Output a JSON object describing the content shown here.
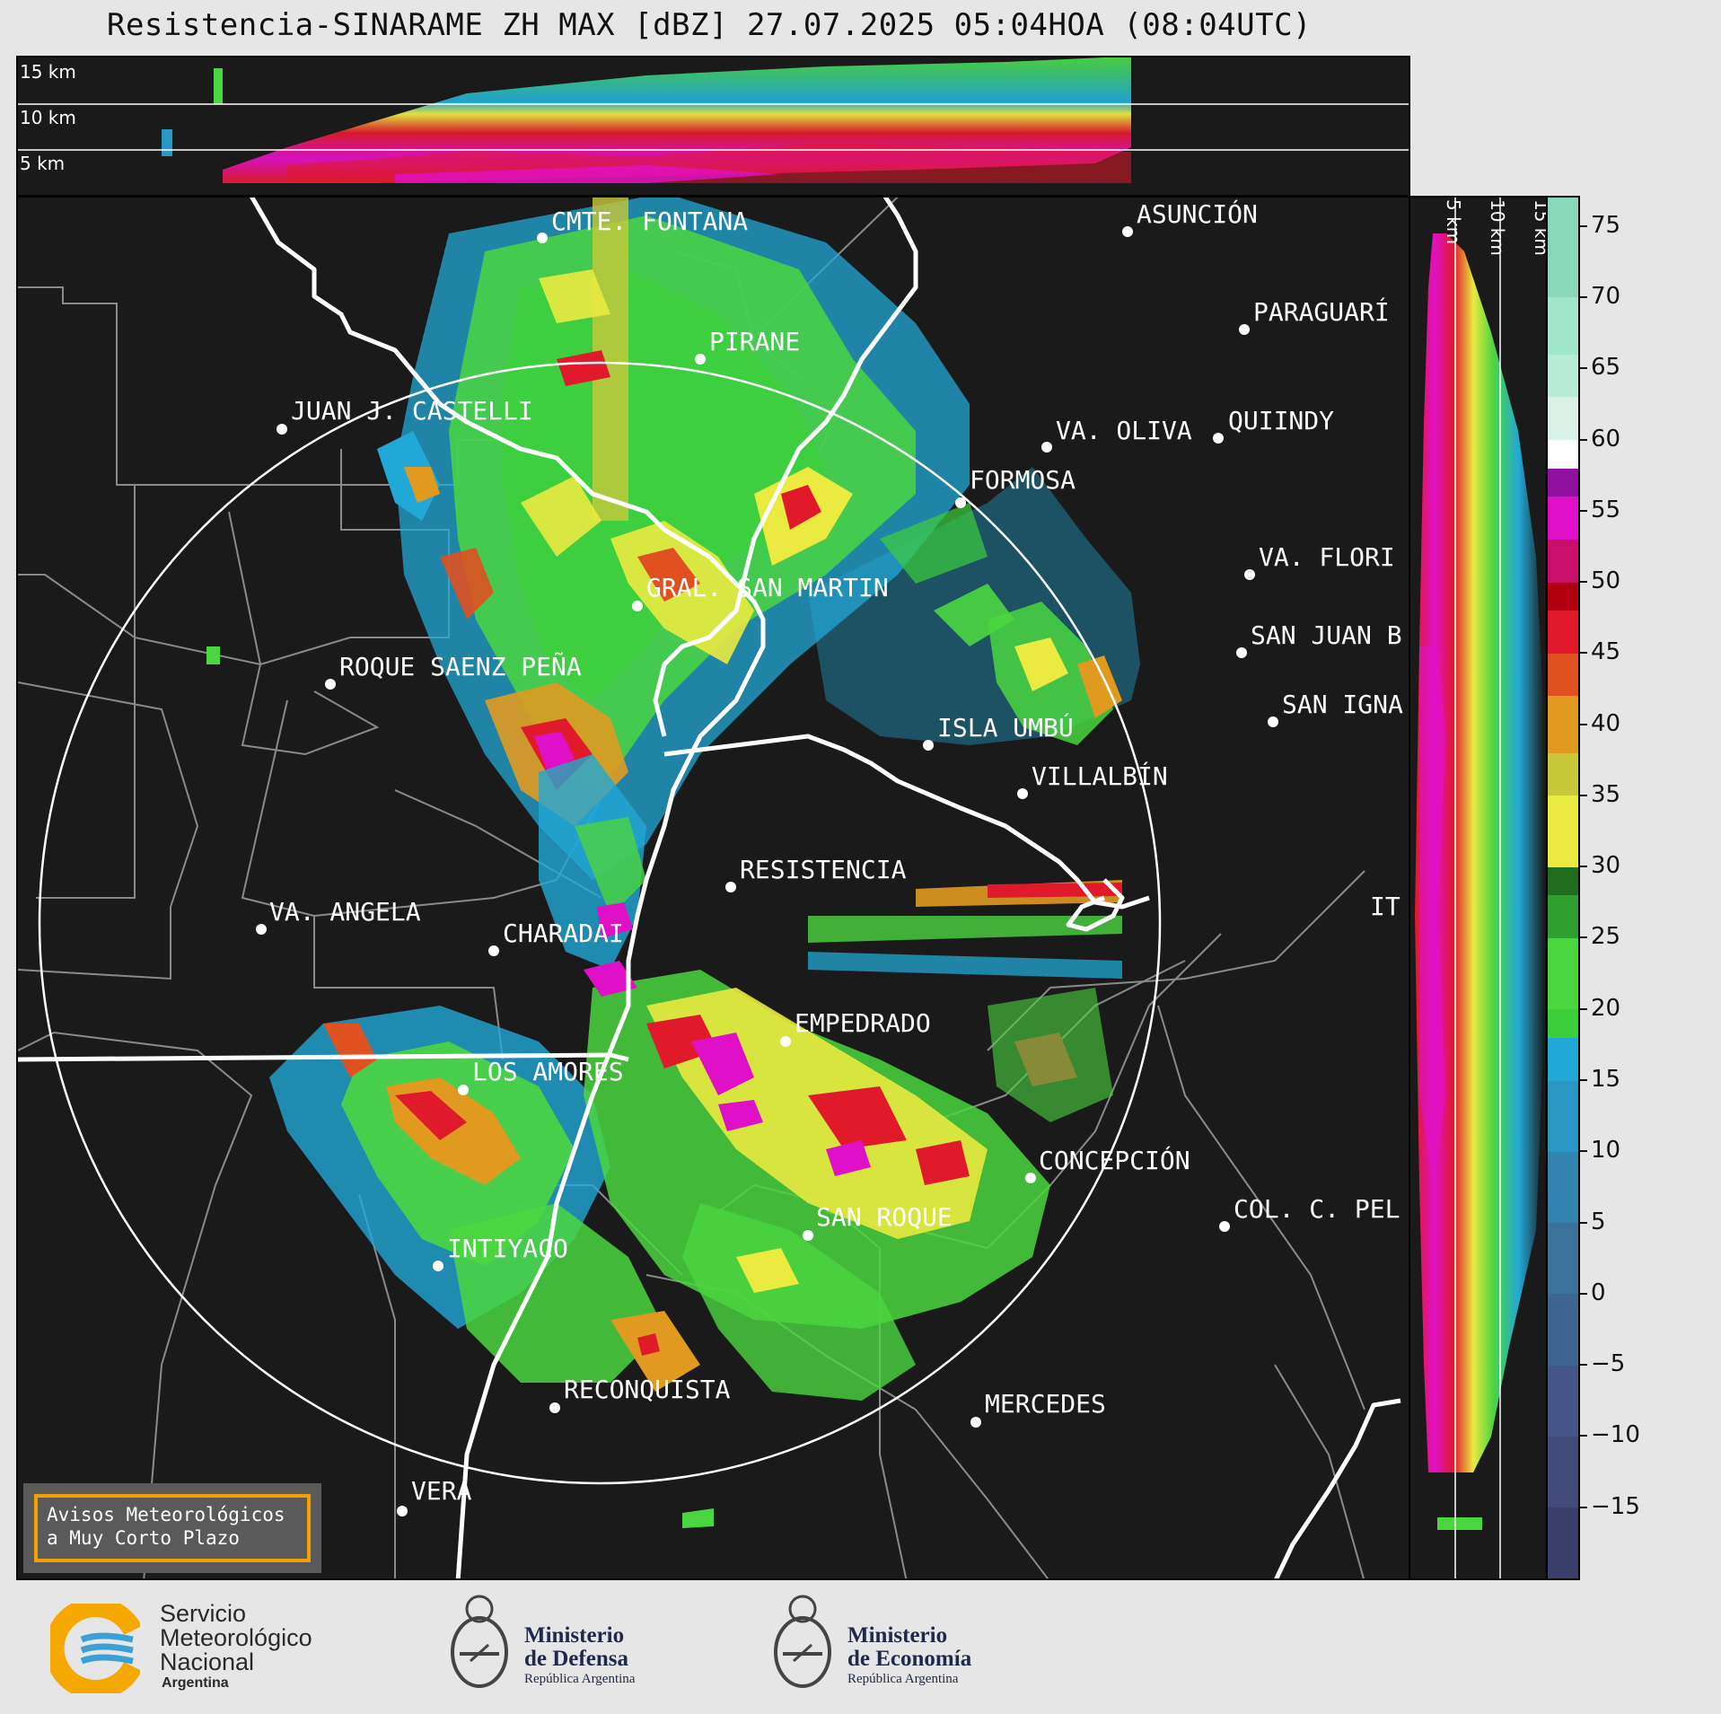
{
  "title": "Resistencia-SINARAME ZH MAX [dBZ] 27.07.2025 05:04HOA (08:04UTC)",
  "top_section": {
    "km_labels": [
      "15 km",
      "10 km",
      "5 km"
    ]
  },
  "side_section": {
    "km_labels": [
      "5 km",
      "10 km",
      "15 km"
    ]
  },
  "colorbar": {
    "unit": "dBZ",
    "ticks": [
      "75",
      "70",
      "65",
      "60",
      "55",
      "50",
      "45",
      "40",
      "35",
      "30",
      "25",
      "20",
      "15",
      "10",
      "5",
      "0",
      "−5",
      "−10",
      "−15"
    ],
    "range": [
      -20,
      77
    ],
    "bands": [
      {
        "from": -20,
        "to": -15,
        "color": "#3b3f6b"
      },
      {
        "from": -15,
        "to": -10,
        "color": "#424a78"
      },
      {
        "from": -10,
        "to": -5,
        "color": "#435685"
      },
      {
        "from": -5,
        "to": 0,
        "color": "#3e6490"
      },
      {
        "from": 0,
        "to": 5,
        "color": "#3a7399"
      },
      {
        "from": 5,
        "to": 10,
        "color": "#3283ad"
      },
      {
        "from": 10,
        "to": 15,
        "color": "#2a96c4"
      },
      {
        "from": 15,
        "to": 18,
        "color": "#22a8d6"
      },
      {
        "from": 18,
        "to": 20,
        "color": "#3ccf3c"
      },
      {
        "from": 20,
        "to": 25,
        "color": "#4bd640"
      },
      {
        "from": 25,
        "to": 28,
        "color": "#2f9f2f"
      },
      {
        "from": 28,
        "to": 30,
        "color": "#1f6e1f"
      },
      {
        "from": 30,
        "to": 35,
        "color": "#eaea40"
      },
      {
        "from": 35,
        "to": 38,
        "color": "#c8c83a"
      },
      {
        "from": 38,
        "to": 42,
        "color": "#e09a20"
      },
      {
        "from": 42,
        "to": 45,
        "color": "#e05020"
      },
      {
        "from": 45,
        "to": 48,
        "color": "#e01a2a"
      },
      {
        "from": 48,
        "to": 50,
        "color": "#b00010"
      },
      {
        "from": 50,
        "to": 53,
        "color": "#c8106a"
      },
      {
        "from": 53,
        "to": 56,
        "color": "#e010c8"
      },
      {
        "from": 56,
        "to": 58,
        "color": "#9010a0"
      },
      {
        "from": 58,
        "to": 60,
        "color": "#ffffff"
      },
      {
        "from": 60,
        "to": 63,
        "color": "#d8f2e8"
      },
      {
        "from": 63,
        "to": 66,
        "color": "#b8ecd8"
      },
      {
        "from": 66,
        "to": 70,
        "color": "#a0e6cc"
      },
      {
        "from": 70,
        "to": 77,
        "color": "#8ad8bc"
      }
    ]
  },
  "cities": [
    {
      "name": "CMTE. FONTANA"
    },
    {
      "name": "ASUNCIÓN"
    },
    {
      "name": "PARAGUARÍ"
    },
    {
      "name": "PIRANE"
    },
    {
      "name": "JUAN J. CASTELLI"
    },
    {
      "name": "VA. OLIVA"
    },
    {
      "name": "QUIINDY"
    },
    {
      "name": "FORMOSA"
    },
    {
      "name": "VA. FLORI"
    },
    {
      "name": "GRAL. SAN MARTIN"
    },
    {
      "name": "SAN JUAN B"
    },
    {
      "name": "ROQUE SAENZ PEÑA"
    },
    {
      "name": "SAN IGNA"
    },
    {
      "name": "ISLA UMBÚ"
    },
    {
      "name": "VILLALBÍN"
    },
    {
      "name": "RESISTENCIA"
    },
    {
      "name": "VA. ANGELA"
    },
    {
      "name": "CHARADAI"
    },
    {
      "name": "IT"
    },
    {
      "name": "EMPEDRADO"
    },
    {
      "name": "LOS AMORES"
    },
    {
      "name": "CONCEPCIÓN"
    },
    {
      "name": "SAN ROQUE"
    },
    {
      "name": "COL. C. PEL"
    },
    {
      "name": "INTIYACO"
    },
    {
      "name": "RECONQUISTA"
    },
    {
      "name": "MERCEDES"
    },
    {
      "name": "VERA"
    }
  ],
  "warning_box": {
    "line1": "Avisos Meteorológicos",
    "line2": "a Muy Corto Plazo"
  },
  "logos": {
    "smn": {
      "line1": "Servicio",
      "line2": "Meteorológico",
      "line3": "Nacional",
      "line4": "Argentina"
    },
    "defensa": {
      "line1": "Ministerio",
      "line2": "de Defensa",
      "line3": "República Argentina"
    },
    "economia": {
      "line1": "Ministerio",
      "line2": "de Economía",
      "line3": "República Argentina"
    }
  }
}
